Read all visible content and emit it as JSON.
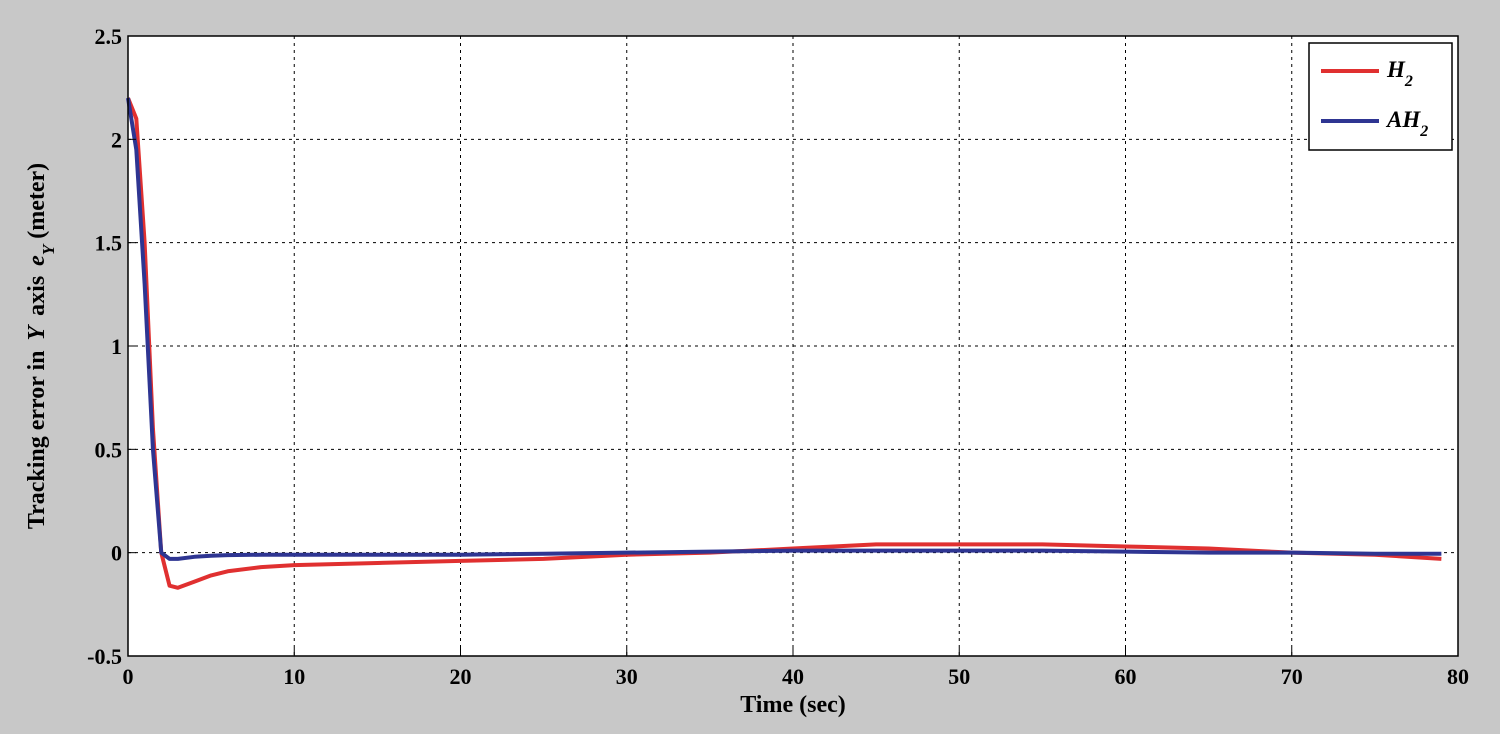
{
  "chart_data": {
    "type": "line",
    "xlabel": "Time (sec)",
    "ylabel": {
      "text": "Tracking error in",
      "symbol": "Y",
      "mid": "axis",
      "var": "e",
      "sub": "Y",
      "unit": "(meter)"
    },
    "x": [
      0,
      0.5,
      1,
      1.5,
      2,
      2.5,
      3,
      4,
      5,
      6,
      8,
      10,
      15,
      20,
      25,
      30,
      35,
      40,
      45,
      50,
      55,
      60,
      65,
      70,
      75,
      79
    ],
    "series": [
      {
        "name": "H2",
        "color": "#e03030",
        "values": [
          2.2,
          2.1,
          1.5,
          0.6,
          0.0,
          -0.16,
          -0.17,
          -0.14,
          -0.11,
          -0.09,
          -0.07,
          -0.06,
          -0.05,
          -0.04,
          -0.03,
          -0.01,
          0.0,
          0.02,
          0.04,
          0.04,
          0.04,
          0.03,
          0.02,
          0.0,
          -0.01,
          -0.03
        ]
      },
      {
        "name": "AH2",
        "color": "#2e3592",
        "values": [
          2.2,
          1.95,
          1.3,
          0.5,
          0.0,
          -0.03,
          -0.03,
          -0.02,
          -0.015,
          -0.012,
          -0.01,
          -0.01,
          -0.01,
          -0.01,
          -0.005,
          0.0,
          0.005,
          0.01,
          0.01,
          0.01,
          0.01,
          0.005,
          0.0,
          0.0,
          -0.005,
          -0.005
        ]
      }
    ],
    "xlim": [
      0,
      80
    ],
    "xticks": [
      0,
      10,
      20,
      30,
      40,
      50,
      60,
      70,
      80
    ],
    "ylim": [
      -0.5,
      2.5
    ],
    "yticks": [
      -0.5,
      0,
      0.5,
      1,
      1.5,
      2,
      2.5
    ],
    "grid": true,
    "legend": "top-right"
  }
}
